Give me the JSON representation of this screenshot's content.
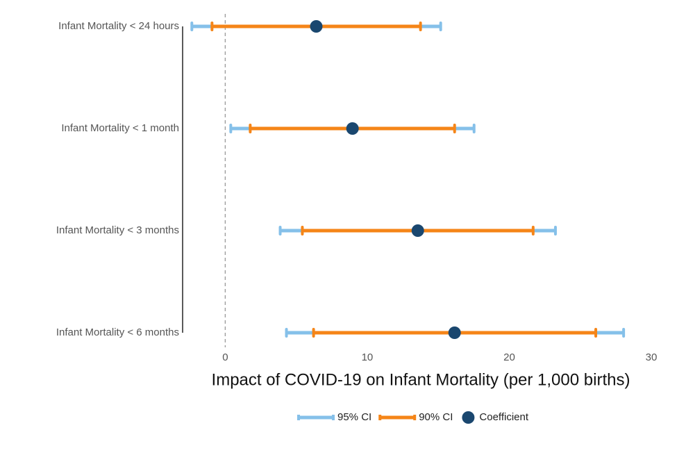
{
  "chart_data": {
    "type": "coefplot",
    "x_label": "Impact of COVID-19 on Infant Mortality (per 1,000 births)",
    "categories": [
      "Infant Mortality < 24 hours",
      "Infant Mortality < 1 month",
      "Infant Mortality < 3 months",
      "Infant Mortality < 6 months"
    ],
    "series": [
      {
        "name": "95% CI",
        "color": "#85c0e9",
        "low": [
          -2.35,
          0.39,
          3.87,
          4.31
        ],
        "high": [
          15.17,
          17.52,
          23.25,
          28.05
        ]
      },
      {
        "name": "90% CI",
        "color": "#f58518",
        "low": [
          -0.93,
          1.76,
          5.43,
          6.22
        ],
        "high": [
          13.75,
          16.15,
          21.68,
          26.09
        ]
      },
      {
        "name": "Coefficient",
        "color": "#1a476f",
        "values": [
          6.41,
          8.96,
          13.56,
          16.15
        ]
      }
    ],
    "xlim": [
      -3,
      30
    ],
    "xticks": [
      0,
      10,
      20,
      30
    ],
    "vline": 0
  }
}
